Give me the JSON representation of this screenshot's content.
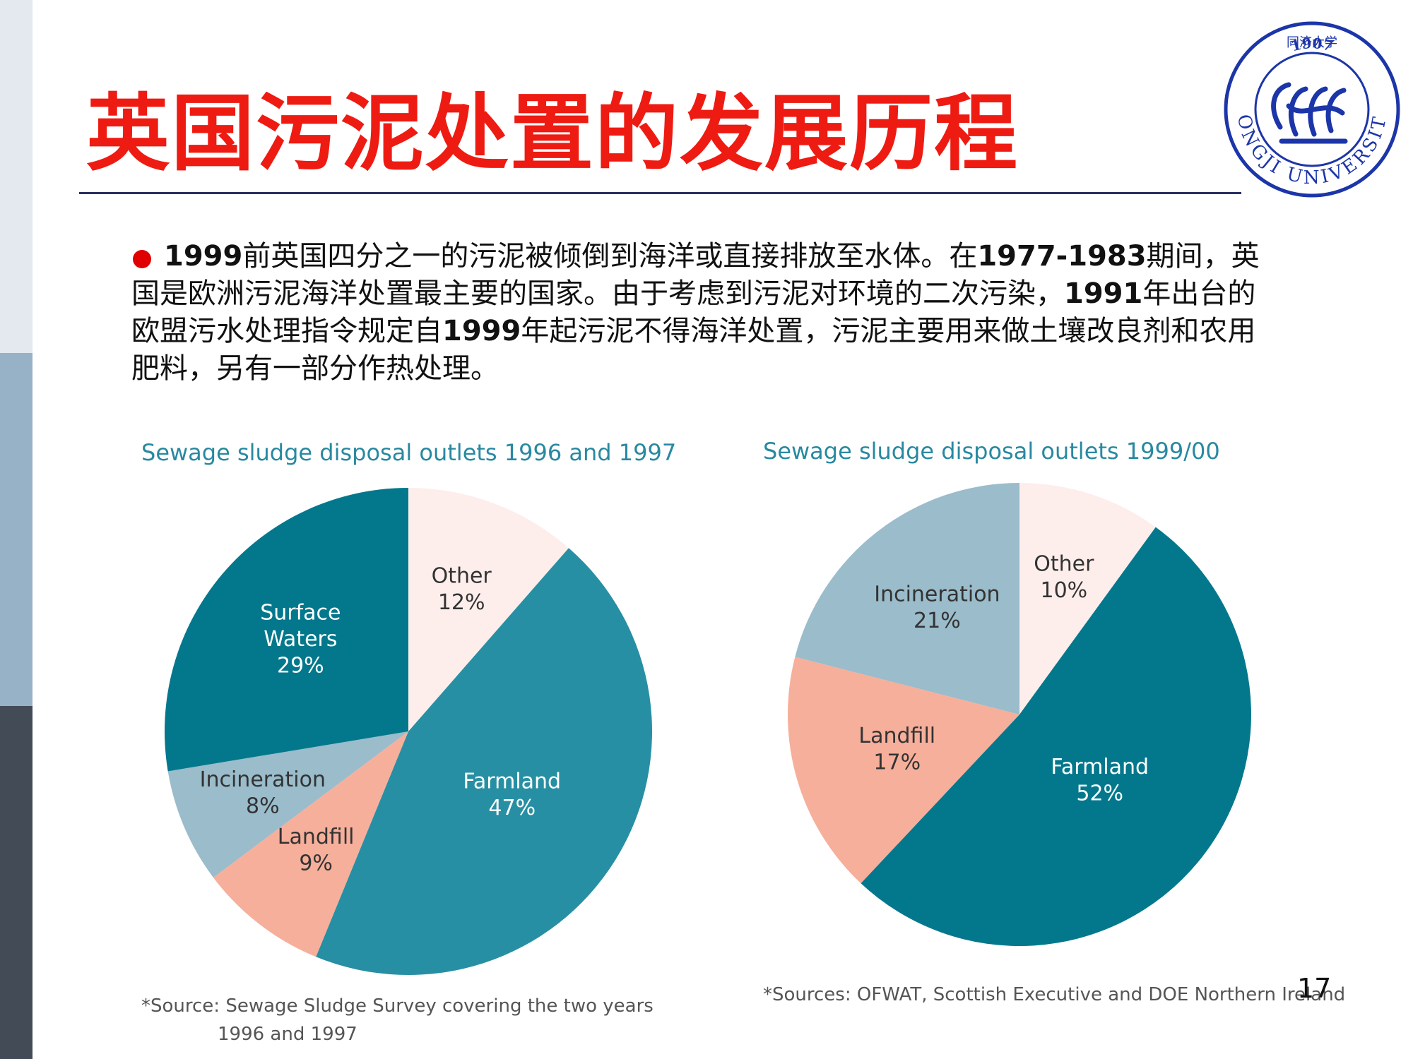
{
  "slide": {
    "title": "英国污泥处置的发展历程",
    "page_number": "17"
  },
  "logo": {
    "year": "1907",
    "text": "TONGJI UNIVERSITY",
    "chinese": "同济大学"
  },
  "bullet": {
    "parts": [
      {
        "text": "1999",
        "bold": true
      },
      {
        "text": "前英国四分之一的污泥被倾倒到海洋或直接排放至水体。在",
        "bold": false
      },
      {
        "text": "1977-1983",
        "bold": true
      },
      {
        "text": "期间，英国是欧洲污泥海洋处置最主要的国家。由于考虑到污泥对环境的二次污染，",
        "bold": false
      },
      {
        "text": "1991",
        "bold": true
      },
      {
        "text": "年出台的欧盟污水处理指令规定自",
        "bold": false
      },
      {
        "text": "1999",
        "bold": true
      },
      {
        "text": "年起污泥不得海洋处置，污泥主要用来做土壤改良剂和农用肥料，另有一部分作热处理。",
        "bold": false
      }
    ]
  },
  "colors": {
    "farmland_1996": "#278fa3",
    "surface_waters": "#03788c",
    "incineration": "#9abccb",
    "landfill": "#f6af9b",
    "other": "#fdeeec",
    "farmland_1999": "#03788c"
  },
  "chart_data": [
    {
      "type": "pie",
      "title": "Sewage sludge disposal outlets 1996 and 1997",
      "slices": [
        {
          "label": "Other",
          "value": 12,
          "value_label": "12%",
          "color": "#fdeeec",
          "text_color": "#333333"
        },
        {
          "label": "Farmland",
          "value": 47,
          "value_label": "47%",
          "color": "#278fa3",
          "text_color": "#ffffff"
        },
        {
          "label": "Landfill",
          "value": 9,
          "value_label": "9%",
          "color": "#f6af9b",
          "text_color": "#333333"
        },
        {
          "label": "Incineration",
          "value": 8,
          "value_label": "8%",
          "color": "#9abccb",
          "text_color": "#333333"
        },
        {
          "label": "Surface Waters",
          "value": 29,
          "value_label": "29%",
          "color": "#03788c",
          "text_color": "#ffffff"
        }
      ],
      "source": [
        "*Source: Sewage Sludge Survey covering the two years",
        "1996 and 1997"
      ]
    },
    {
      "type": "pie",
      "title": "Sewage sludge disposal outlets 1999/00",
      "slices": [
        {
          "label": "Other",
          "value": 10,
          "value_label": "10%",
          "color": "#fdeeec",
          "text_color": "#333333"
        },
        {
          "label": "Farmland",
          "value": 52,
          "value_label": "52%",
          "color": "#03788c",
          "text_color": "#ffffff"
        },
        {
          "label": "Landfill",
          "value": 17,
          "value_label": "17%",
          "color": "#f6af9b",
          "text_color": "#333333"
        },
        {
          "label": "Incineration",
          "value": 21,
          "value_label": "21%",
          "color": "#9abccb",
          "text_color": "#333333"
        }
      ],
      "source": [
        "*Sources: OFWAT, Scottish Executive and DOE Northern Ireland"
      ]
    }
  ]
}
